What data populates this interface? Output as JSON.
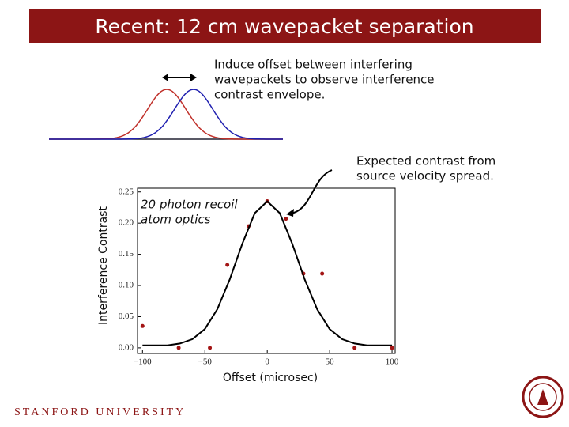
{
  "chart_data": {
    "type": "scatter",
    "title": "Recent: 12 cm wavepacket separation",
    "annotations": [
      [
        "Induce offset between interfering",
        "wavepackets to observe interference",
        "contrast envelope."
      ],
      [
        "Expected contrast from",
        "source velocity spread."
      ],
      [
        "20 photon recoil",
        "atom optics"
      ]
    ],
    "xlabel": "Offset (microsec)",
    "ylabel": "Interference Contrast",
    "footer": "STANFORD UNIVERSITY",
    "xlim": [
      -104,
      102.5
    ],
    "ylim": [
      -0.009,
      0.256
    ],
    "xticks": [
      {
        "value": -100,
        "label": "−100"
      },
      {
        "value": -50,
        "label": "−50"
      },
      0,
      50,
      100
    ],
    "yticks": [
      {
        "value": 0,
        "label": "0.00"
      },
      {
        "value": 0.05,
        "label": "0.05"
      },
      {
        "value": 0.1,
        "label": "0.10"
      },
      {
        "value": 0.15,
        "label": "0.15"
      },
      {
        "value": 0.2,
        "label": "0.20"
      },
      {
        "value": 0.25,
        "label": "0.25"
      }
    ],
    "series": [
      {
        "style": "markers",
        "color": "#a31515",
        "x": [
          -100,
          -71,
          -46,
          -32,
          -15,
          0,
          15,
          29,
          44,
          70,
          100
        ],
        "values": [
          0.035,
          0,
          0,
          0.133,
          0.195,
          0.235,
          0.207,
          0.119,
          0.119,
          0,
          0
        ]
      },
      {
        "style": "line",
        "color": "#000000",
        "x": [
          -100,
          -90,
          -80,
          -70,
          -60,
          -50,
          -40,
          -30,
          -20,
          -10,
          0,
          10,
          20,
          30,
          40,
          50,
          60,
          70,
          80,
          90,
          100
        ],
        "values": [
          0.004,
          0.004,
          0.004,
          0.007,
          0.014,
          0.03,
          0.062,
          0.11,
          0.167,
          0.216,
          0.235,
          0.216,
          0.167,
          0.11,
          0.062,
          0.03,
          0.014,
          0.007,
          0.004,
          0.004,
          0.004
        ]
      }
    ]
  }
}
